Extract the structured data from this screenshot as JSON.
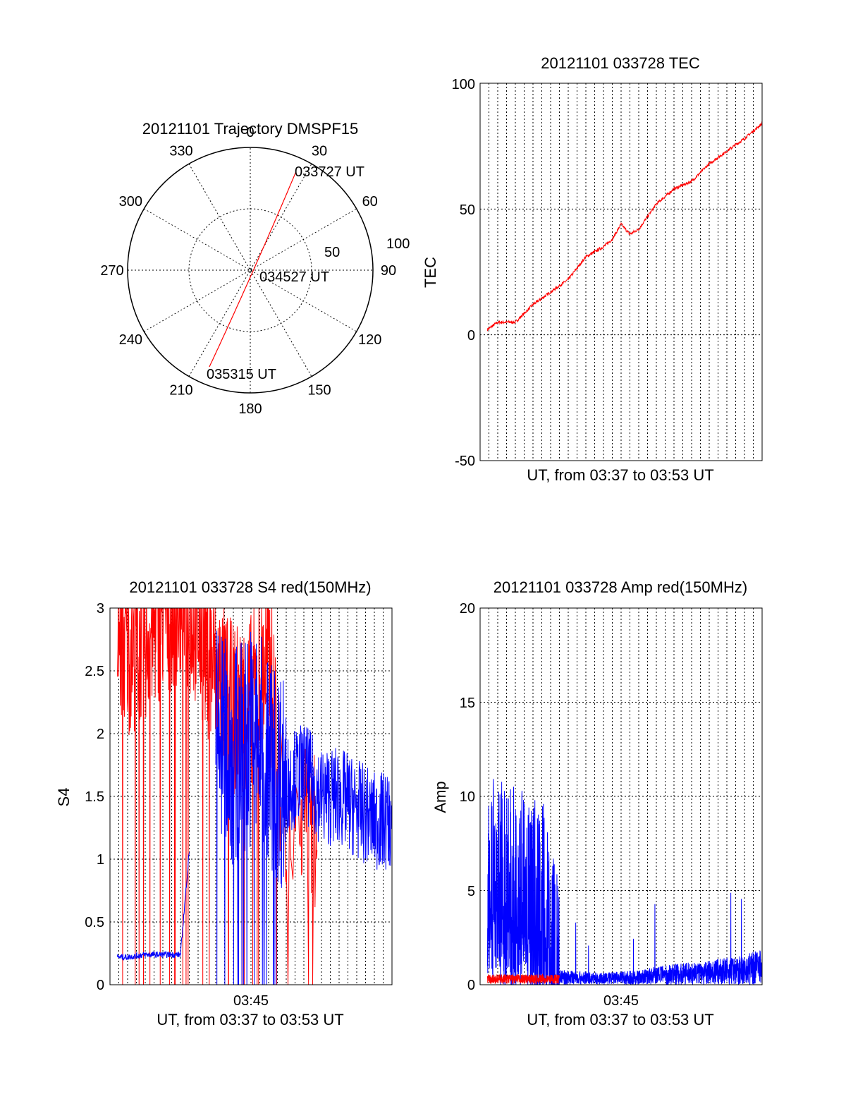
{
  "chart_data": [
    {
      "type": "polar",
      "title": "20121101 Trajectory DMSPF15",
      "angle_labels": [
        "0",
        "30",
        "60",
        "90",
        "120",
        "150",
        "180",
        "210",
        "240",
        "270",
        "300",
        "330"
      ],
      "radial_labels": [
        "50",
        "100"
      ],
      "rlim": [
        0,
        100
      ],
      "series_color": "#ff0000",
      "track": {
        "start_label": "033727 UT",
        "mid_label": "034527 UT",
        "end_label": "035315 UT"
      }
    },
    {
      "type": "line",
      "title": "20121101 033728 TEC",
      "xlabel": "UT, from 03:37 to 03:53 UT",
      "ylabel": "TEC",
      "ylim": [
        -50,
        100
      ],
      "yticks": [
        "-50",
        "0",
        "50",
        "100"
      ],
      "xlim": [
        "03:37",
        "03:53"
      ],
      "grid": true,
      "series": [
        {
          "color": "#ff0000",
          "points": [
            [
              "03:37",
              0
            ],
            [
              "03:38",
              5
            ],
            [
              "03:39",
              5
            ],
            [
              "03:40",
              12
            ],
            [
              "03:41",
              17
            ],
            [
              "03:42",
              22
            ],
            [
              "03:43",
              31
            ],
            [
              "03:44",
              35
            ],
            [
              "03:44:30",
              38
            ],
            [
              "03:45",
              44
            ],
            [
              "03:45:30",
              40
            ],
            [
              "03:46",
              42
            ],
            [
              "03:47",
              52
            ],
            [
              "03:48",
              58
            ],
            [
              "03:49",
              61
            ],
            [
              "03:50",
              68
            ],
            [
              "03:51",
              73
            ],
            [
              "03:52",
              78
            ],
            [
              "03:53",
              84
            ]
          ]
        }
      ]
    },
    {
      "type": "line",
      "title": "20121101 033728 S4 red(150MHz)",
      "xlabel": "UT, from 03:37 to 03:53 UT",
      "ylabel": "S4",
      "ylim": [
        0,
        3
      ],
      "yticks": [
        "0",
        "0.5",
        "1",
        "1.5",
        "2",
        "2.5",
        "3"
      ],
      "xticks": [
        "03:45"
      ],
      "xlim": [
        "03:37",
        "03:53"
      ],
      "grid": true,
      "series": [
        {
          "color": "#ff0000",
          "points": [
            [
              "03:37",
              2.6
            ],
            [
              "03:38",
              2.4
            ],
            [
              "03:39",
              2.5
            ],
            [
              "03:40",
              2.7
            ],
            [
              "03:41",
              2.8
            ],
            [
              "03:42",
              2.6
            ],
            [
              "03:43",
              2.2
            ],
            [
              "03:44",
              1.9
            ],
            [
              "03:45",
              2.0
            ],
            [
              "03:46",
              2.3
            ],
            [
              "03:47",
              1.0
            ]
          ]
        },
        {
          "color": "#0000ff",
          "points": [
            [
              "03:37",
              0.22
            ],
            [
              "03:38",
              0.22
            ],
            [
              "03:39",
              0.24
            ],
            [
              "03:41",
              0.24
            ],
            [
              "03:42",
              1.9
            ],
            [
              "03:43",
              2.0
            ],
            [
              "03:44",
              1.8
            ],
            [
              "03:45",
              2.0
            ],
            [
              "03:46",
              1.8
            ],
            [
              "03:47",
              1.6
            ],
            [
              "03:48",
              1.7
            ],
            [
              "03:49",
              1.5
            ],
            [
              "03:50",
              1.5
            ],
            [
              "03:51",
              1.4
            ],
            [
              "03:52",
              1.3
            ],
            [
              "03:53",
              1.3
            ]
          ]
        }
      ]
    },
    {
      "type": "line",
      "title": "20121101 033728 Amp red(150MHz)",
      "xlabel": "UT, from 03:37 to 03:53 UT",
      "ylabel": "Amp",
      "ylim": [
        0,
        20
      ],
      "yticks": [
        "0",
        "5",
        "10",
        "15",
        "20"
      ],
      "xticks": [
        "03:45"
      ],
      "xlim": [
        "03:37",
        "03:53"
      ],
      "grid": true,
      "series": [
        {
          "color": "#ff0000",
          "points": [
            [
              "03:37",
              0.3
            ],
            [
              "03:39",
              0.3
            ],
            [
              "03:41",
              0.3
            ],
            [
              "03:42",
              0.3
            ],
            [
              "03:46",
              0.3
            ],
            [
              "03:48",
              0.4
            ],
            [
              "03:50",
              0.4
            ],
            [
              "03:53",
              0.4
            ]
          ]
        },
        {
          "color": "#0000ff",
          "points": [
            [
              "03:37",
              7.5
            ],
            [
              "03:38",
              7.0
            ],
            [
              "03:39",
              6.5
            ],
            [
              "03:40",
              6.0
            ],
            [
              "03:41",
              5.5
            ],
            [
              "03:41:30",
              0.5
            ],
            [
              "03:44",
              0.4
            ],
            [
              "03:46",
              0.5
            ],
            [
              "03:48",
              0.7
            ],
            [
              "03:50",
              0.8
            ],
            [
              "03:52",
              1.0
            ],
            [
              "03:53",
              1.2
            ]
          ]
        }
      ]
    }
  ]
}
